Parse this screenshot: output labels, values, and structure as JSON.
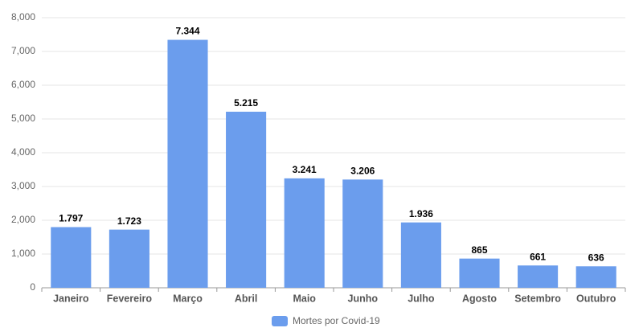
{
  "chart_data": {
    "type": "bar",
    "categories": [
      "Janeiro",
      "Fevereiro",
      "Março",
      "Abril",
      "Maio",
      "Junho",
      "Julho",
      "Agosto",
      "Setembro",
      "Outubro"
    ],
    "series": [
      {
        "name": "Mortes por Covid-19",
        "color": "#6b9ded",
        "values": [
          1797,
          1723,
          7344,
          5215,
          3241,
          3206,
          1936,
          865,
          661,
          636
        ],
        "value_labels": [
          "1.797",
          "1.723",
          "7.344",
          "5.215",
          "3.241",
          "3.206",
          "1.936",
          "865",
          "661",
          "636"
        ]
      }
    ],
    "ylim": [
      0,
      8000
    ],
    "yticks": [
      0,
      {
        "value": 1000,
        "label": "1,000"
      },
      {
        "value": 2000,
        "label": "2,000"
      },
      {
        "value": 3000,
        "label": "3,000"
      },
      {
        "value": 4000,
        "label": "4,000"
      },
      {
        "value": 5000,
        "label": "5,000"
      },
      {
        "value": 6000,
        "label": "6,000"
      },
      {
        "value": 7000,
        "label": "7,000"
      },
      {
        "value": 8000,
        "label": "8,000"
      }
    ],
    "grid": true,
    "legend": "bottom"
  }
}
